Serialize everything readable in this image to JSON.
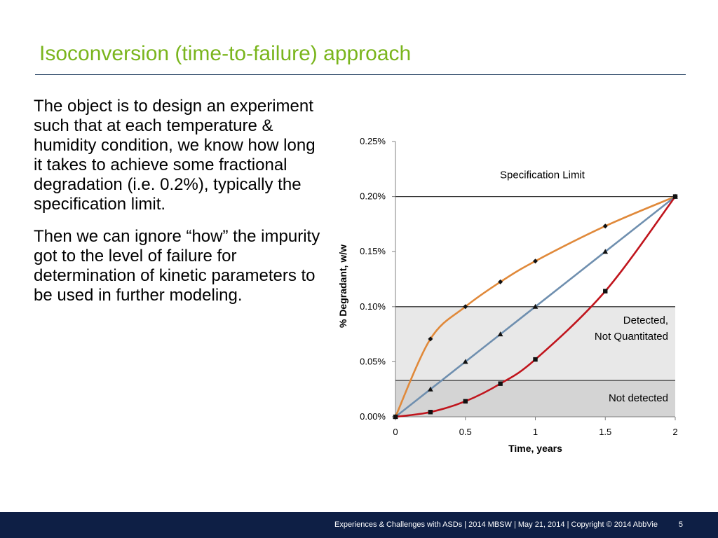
{
  "slide": {
    "title": "Isoconversion (time-to-failure) approach",
    "paragraphs": [
      "The object is to design an experiment such that at each temperature & humidity condition, we know how long it takes to achieve some fractional degradation (i.e. 0.2%), typically the specification limit.",
      "Then we can ignore “how” the impurity got to the level of failure for determination of kinetic parameters to be used in further modeling."
    ]
  },
  "footer": {
    "text": "Experiences  & Challenges with ASDs | 2014 MBSW | May 21, 2014 | Copyright © 2014 AbbVie",
    "page": "5"
  },
  "chart_data": {
    "type": "line",
    "title": "",
    "xlabel": "Time, years",
    "ylabel": "% Degradant, w/w",
    "xlim": [
      0,
      2
    ],
    "ylim": [
      0,
      0.25
    ],
    "x_ticks": [
      0,
      0.5,
      1,
      1.5,
      2
    ],
    "x_tick_labels": [
      "0",
      "0.5",
      "1",
      "1.5",
      "2"
    ],
    "y_ticks": [
      0,
      0.05,
      0.1,
      0.15,
      0.2,
      0.25
    ],
    "y_tick_labels": [
      "0.00%",
      "0.05%",
      "0.10%",
      "0.15%",
      "0.20%",
      "0.25%"
    ],
    "x": [
      0,
      0.25,
      0.5,
      0.75,
      1,
      1.5,
      2
    ],
    "series": [
      {
        "marker": "diamond",
        "color": "#e0893a",
        "values": [
          0,
          0.0707,
          0.1,
          0.1225,
          0.1414,
          0.1732,
          0.2
        ]
      },
      {
        "marker": "triangle",
        "color": "#6f8faf",
        "values": [
          0,
          0.025,
          0.05,
          0.075,
          0.1,
          0.15,
          0.2
        ]
      },
      {
        "marker": "square",
        "color": "#c0141c",
        "values": [
          0,
          0.0043,
          0.0141,
          0.0301,
          0.0521,
          0.1141,
          0.2
        ]
      }
    ],
    "regions": [
      {
        "label": "Not detected",
        "y_from": 0,
        "y_to": 0.033,
        "color": "#d4d4d4"
      },
      {
        "label_lines": [
          "Detected,",
          "Not Quantitated"
        ],
        "y_from": 0.033,
        "y_to": 0.1,
        "color": "#e8e8e8"
      }
    ],
    "reference_lines": [
      {
        "y": 0.2,
        "label": "Specification Limit"
      },
      {
        "y": 0.1
      },
      {
        "y": 0.033
      }
    ]
  }
}
